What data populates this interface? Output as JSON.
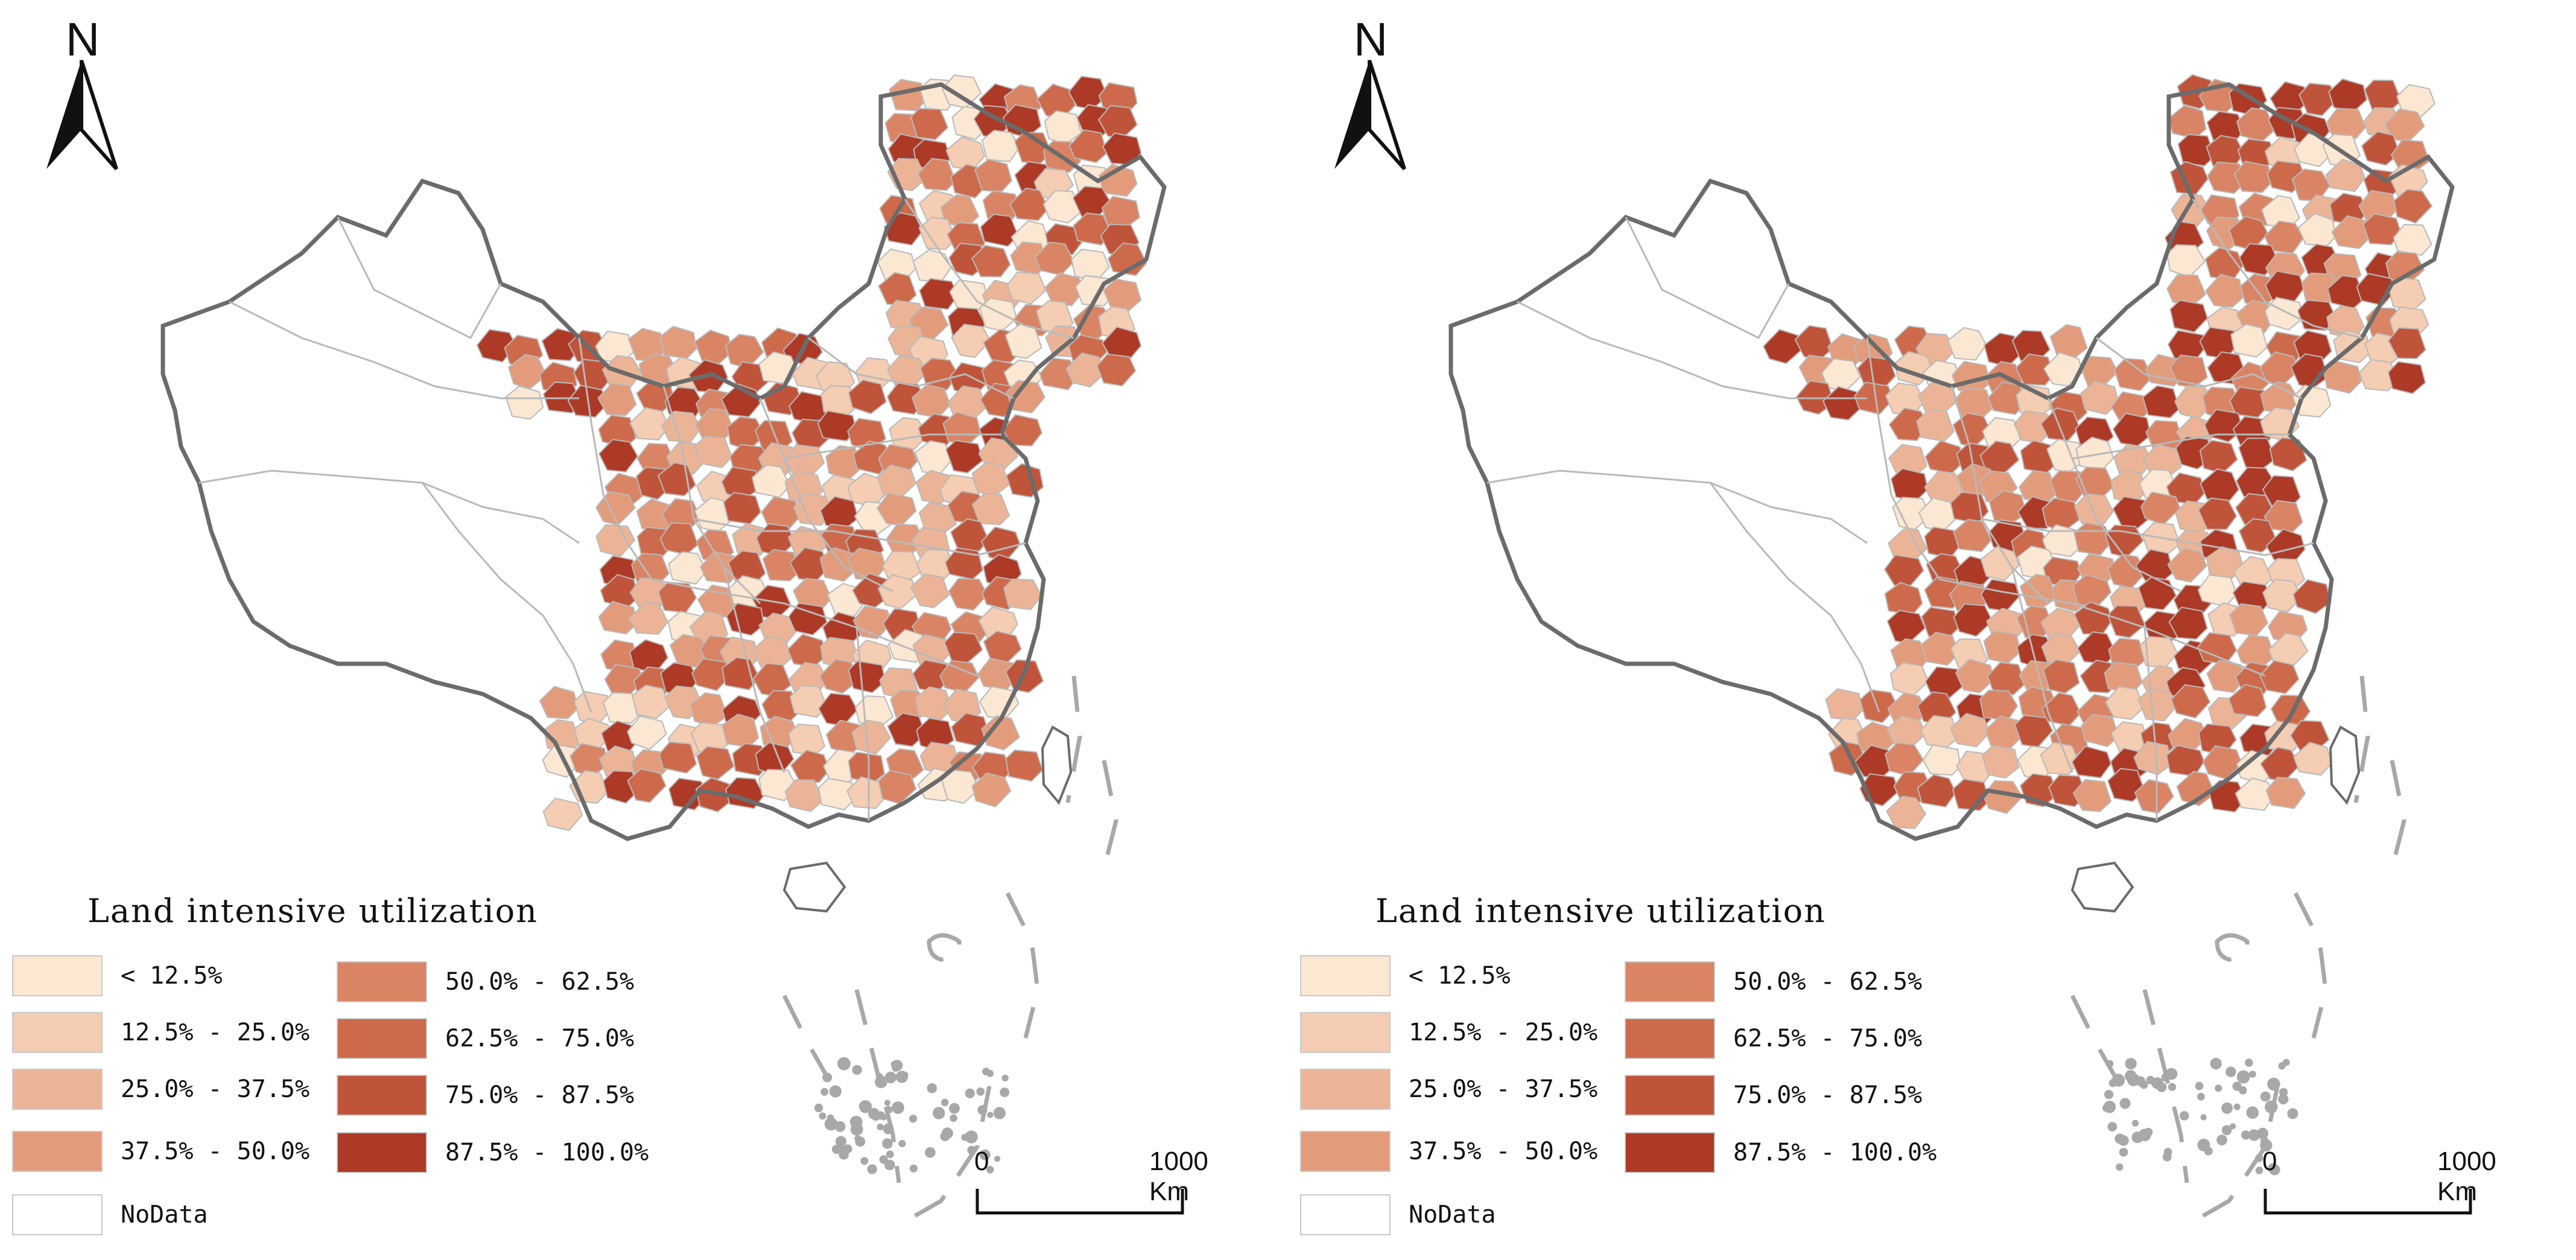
{
  "panels": [
    {
      "north_label": "N",
      "legend": {
        "title": "Land intensive utilization",
        "classes": [
          {
            "label": "< 12.5%",
            "color": "#fbe7d2"
          },
          {
            "label": "12.5% - 25.0%",
            "color": "#f4cdb2"
          },
          {
            "label": "25.0% - 37.5%",
            "color": "#ecb496"
          },
          {
            "label": "37.5% - 50.0%",
            "color": "#e39c7b"
          },
          {
            "label": "50.0% - 62.5%",
            "color": "#d98464"
          },
          {
            "label": "62.5% - 75.0%",
            "color": "#cd6a4b"
          },
          {
            "label": "75.0% - 87.5%",
            "color": "#c0543a"
          },
          {
            "label": "87.5% - 100.0%",
            "color": "#ad3a26"
          }
        ],
        "nodata": {
          "label": "NoData",
          "color": "#ffffff"
        }
      },
      "scale": {
        "start": "0",
        "end": "1000 Km"
      }
    },
    {
      "north_label": "N",
      "legend": {
        "title": "Land intensive utilization",
        "classes": [
          {
            "label": "< 12.5%",
            "color": "#fbe7d2"
          },
          {
            "label": "12.5% - 25.0%",
            "color": "#f4cdb2"
          },
          {
            "label": "25.0% - 37.5%",
            "color": "#ecb496"
          },
          {
            "label": "37.5% - 50.0%",
            "color": "#e39c7b"
          },
          {
            "label": "50.0% - 62.5%",
            "color": "#d98464"
          },
          {
            "label": "62.5% - 75.0%",
            "color": "#cd6a4b"
          },
          {
            "label": "75.0% - 87.5%",
            "color": "#c0543a"
          },
          {
            "label": "87.5% - 100.0%",
            "color": "#ad3a26"
          }
        ],
        "nodata": {
          "label": "NoData",
          "color": "#ffffff"
        }
      },
      "scale": {
        "start": "0",
        "end": "1000 Km"
      }
    }
  ],
  "colors": {
    "outline": "#6b6b6b",
    "inner_border": "#b9b9b9",
    "island": "#a8a8a8"
  }
}
